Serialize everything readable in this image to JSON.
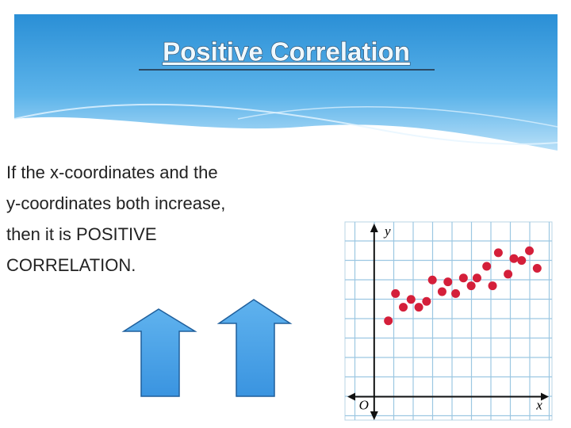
{
  "header": {
    "title": "Positive Correlation"
  },
  "body": {
    "lines": [
      "If the x-coordinates and the",
      "y-coordinates both increase,",
      "then it is POSITIVE",
      "CORRELATION."
    ]
  },
  "chart_data": {
    "type": "scatter",
    "x_label": "x",
    "y_label": "y",
    "origin_label": "O",
    "color": "#d41f3a",
    "x": [
      0.73,
      1.1,
      1.5,
      1.9,
      2.3,
      2.7,
      3.0,
      3.5,
      3.8,
      4.2,
      4.6,
      5.0,
      5.3,
      5.8,
      6.1,
      6.4,
      6.9,
      7.2,
      7.6,
      8.0,
      8.4
    ],
    "values": [
      3.9,
      5.3,
      4.6,
      5.0,
      4.6,
      4.9,
      6.0,
      5.4,
      5.9,
      5.3,
      6.1,
      5.7,
      6.1,
      6.7,
      5.7,
      7.4,
      6.3,
      7.1,
      7.0,
      7.5,
      6.6
    ],
    "xlim": [
      -1.3,
      9.0
    ],
    "ylim": [
      -1.2,
      8.9
    ]
  }
}
